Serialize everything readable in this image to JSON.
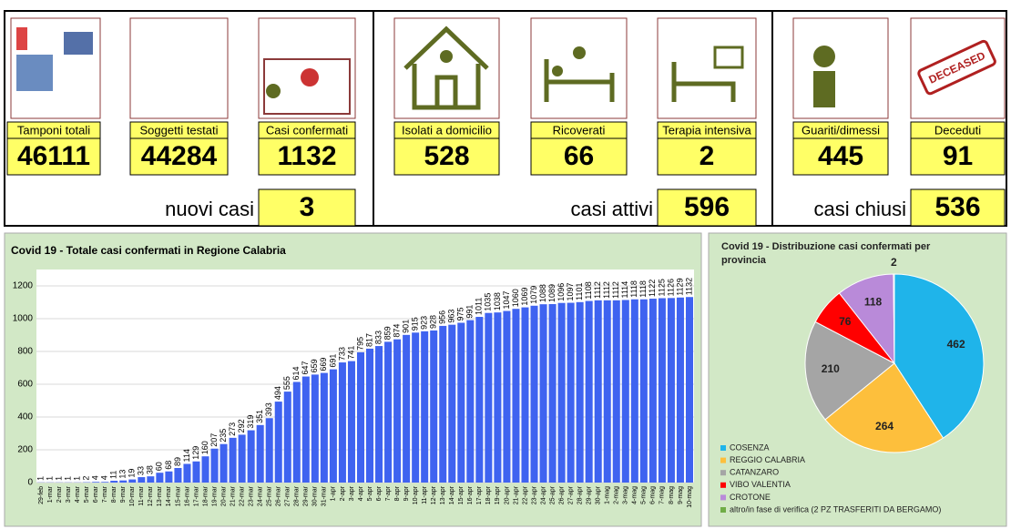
{
  "dashboard": {
    "cards": [
      {
        "label": "Tamponi totali",
        "value": 46111
      },
      {
        "label": "Soggetti testati",
        "value": 44284
      },
      {
        "label": "Casi confermati",
        "value": 1132
      },
      {
        "label": "Isolati a domicilio",
        "value": 528
      },
      {
        "label": "Ricoverati",
        "value": 66
      },
      {
        "label": "Terapia intensiva",
        "value": 2
      },
      {
        "label": "Guariti/dimessi",
        "value": 445
      },
      {
        "label": "Deceduti",
        "value": 91
      }
    ],
    "summaries": [
      {
        "label": "nuovi casi",
        "value": 3
      },
      {
        "label": "casi attivi",
        "value": 596
      },
      {
        "label": "casi chiusi",
        "value": 536
      }
    ],
    "stamp": "DECEASED"
  },
  "chart_data": [
    {
      "type": "bar",
      "title": "Covid 19 - Totale casi confermati in Regione Calabria",
      "color": "#3f63f0",
      "categories": [
        "29-feb",
        "1-mar",
        "2-mar",
        "3-mar",
        "4-mar",
        "5-mar",
        "6-mar",
        "7-mar",
        "8-mar",
        "9-mar",
        "10-mar",
        "11-mar",
        "12-mar",
        "13-mar",
        "14-mar",
        "15-mar",
        "16-mar",
        "17-mar",
        "18-mar",
        "19-mar",
        "20-mar",
        "21-mar",
        "22-mar",
        "23-mar",
        "24-mar",
        "25-mar",
        "26-mar",
        "27-mar",
        "28-mar",
        "29-mar",
        "30-mar",
        "31-mar",
        "1-apr",
        "2-apr",
        "3-apr",
        "4-apr",
        "5-apr",
        "6-apr",
        "7-apr",
        "8-apr",
        "9-apr",
        "10-apr",
        "11-apr",
        "12-apr",
        "13-apr",
        "14-apr",
        "15-apr",
        "16-apr",
        "17-apr",
        "18-apr",
        "19-apr",
        "20-apr",
        "21-apr",
        "22-apr",
        "23-apr",
        "24-apr",
        "25-apr",
        "26-apr",
        "27-apr",
        "28-apr",
        "29-apr",
        "30-apr",
        "1-mag",
        "2-mag",
        "3-mag",
        "4-mag",
        "5-mag",
        "6-mag",
        "7-mag",
        "8-mag",
        "9-mag",
        "10-mag"
      ],
      "values": [
        1,
        1,
        1,
        1,
        1,
        2,
        4,
        4,
        11,
        13,
        19,
        33,
        38,
        60,
        68,
        89,
        114,
        129,
        160,
        207,
        235,
        273,
        292,
        319,
        351,
        393,
        494,
        555,
        614,
        647,
        659,
        669,
        691,
        733,
        741,
        795,
        817,
        833,
        859,
        874,
        901,
        915,
        923,
        928,
        956,
        963,
        975,
        991,
        1011,
        1035,
        1038,
        1047,
        1060,
        1069,
        1079,
        1088,
        1089,
        1096,
        1097,
        1101,
        1108,
        1112,
        1112,
        1112,
        1114,
        1118,
        1118,
        1122,
        1125,
        1126,
        1129,
        1132
      ],
      "ylim": [
        0,
        1300
      ],
      "yticks": [
        0,
        200,
        400,
        600,
        800,
        1000,
        1200
      ],
      "grid": true
    },
    {
      "type": "pie",
      "title": "Covid 19 - Distribuzione casi confermati per provincia",
      "categories": [
        "COSENZA",
        "REGGIO CALABRIA",
        "CATANZARO",
        "VIBO VALENTIA",
        "CROTONE",
        "altro/in fase di verifica (2 PZ TRASFERITI DA BERGAMO)"
      ],
      "values": [
        462,
        264,
        210,
        76,
        118,
        2
      ],
      "colors": [
        "#1fb4ea",
        "#fdbf3c",
        "#a5a5a5",
        "#ff0000",
        "#b98ad9",
        "#70ad47"
      ]
    }
  ]
}
